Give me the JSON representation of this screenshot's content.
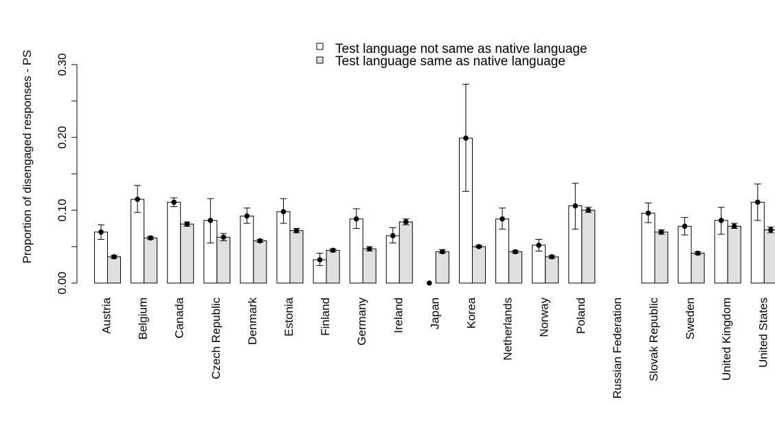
{
  "chart_data": {
    "type": "bar",
    "ylabel": "Proportion of disengaged responses - PS",
    "ylim": [
      0,
      0.3
    ],
    "yticks": [
      "0.00",
      "0.10",
      "0.20",
      "0.30"
    ],
    "grid": false,
    "legend_position": "top",
    "categories": [
      "Austria",
      "Belgium",
      "Canada",
      "Czech Republic",
      "Denmark",
      "Estonia",
      "Finland",
      "Germany",
      "Ireland",
      "Japan",
      "Korea",
      "Netherlands",
      "Norway",
      "Poland",
      "Russian Federation",
      "Slovak Republic",
      "Sweden",
      "United Kingdom",
      "United States"
    ],
    "series": [
      {
        "name": "Test language not same as native language",
        "color": "#ffffff",
        "values": [
          0.07,
          0.115,
          0.111,
          0.086,
          0.092,
          0.098,
          0.032,
          0.088,
          0.065,
          0.0,
          0.199,
          0.088,
          0.052,
          0.106,
          null,
          0.096,
          0.078,
          0.086,
          0.111
        ],
        "err_low": [
          0.06,
          0.097,
          0.105,
          0.055,
          0.082,
          0.082,
          0.024,
          0.075,
          0.055,
          0.0,
          0.126,
          0.074,
          0.044,
          0.074,
          null,
          0.083,
          0.066,
          0.067,
          0.086
        ],
        "err_high": [
          0.08,
          0.134,
          0.117,
          0.116,
          0.103,
          0.116,
          0.041,
          0.102,
          0.076,
          0.0,
          0.273,
          0.103,
          0.06,
          0.137,
          null,
          0.11,
          0.09,
          0.104,
          0.136
        ]
      },
      {
        "name": "Test language same as native language",
        "color": "#e0e0e0",
        "values": [
          0.036,
          0.062,
          0.081,
          0.063,
          0.058,
          0.072,
          0.045,
          0.047,
          0.084,
          0.043,
          0.05,
          0.043,
          0.036,
          0.1,
          null,
          0.07,
          0.041,
          0.078,
          0.073
        ],
        "err_low": [
          0.034,
          0.06,
          0.078,
          0.058,
          0.056,
          0.069,
          0.043,
          0.044,
          0.08,
          0.041,
          0.049,
          0.041,
          0.034,
          0.097,
          null,
          0.067,
          0.039,
          0.075,
          0.069
        ],
        "err_high": [
          0.038,
          0.064,
          0.084,
          0.068,
          0.06,
          0.075,
          0.047,
          0.05,
          0.088,
          0.046,
          0.052,
          0.045,
          0.038,
          0.104,
          null,
          0.073,
          0.043,
          0.082,
          0.077
        ]
      }
    ]
  }
}
